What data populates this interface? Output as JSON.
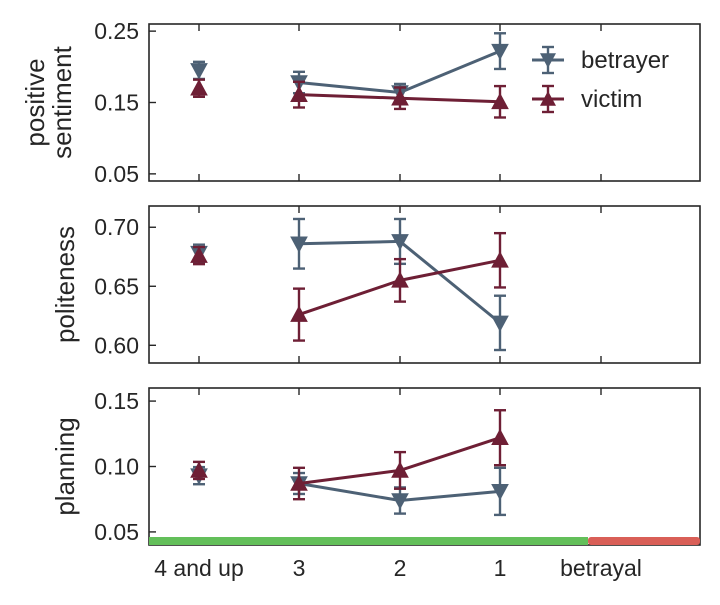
{
  "chart_data": {
    "type": "line",
    "categories": [
      "4 and up",
      "3",
      "2",
      "1",
      "betrayal"
    ],
    "legend": {
      "position": "top-right",
      "entries": [
        {
          "name": "betrayer",
          "color": "#4d6175",
          "marker": "triangle-down"
        },
        {
          "name": "victim",
          "color": "#6e1f35",
          "marker": "triangle-up"
        }
      ]
    },
    "phase_bar": {
      "pre": "#63bf5a",
      "betrayal": "#d95f57"
    },
    "grid": false,
    "panels": [
      {
        "ylabel": [
          "positive",
          "sentiment"
        ],
        "ylim": [
          0.04,
          0.26
        ],
        "yticks": [
          "0.05",
          "0.15",
          "0.25"
        ],
        "ytick_values": [
          0.05,
          0.15,
          0.25
        ],
        "series": [
          {
            "name": "betrayer",
            "values": [
              0.195,
              0.178,
              0.164,
              0.222
            ],
            "err": [
              0.0,
              0.015,
              0.012,
              0.025
            ]
          },
          {
            "name": "victim",
            "values": [
              0.17,
              0.161,
              0.156,
              0.151
            ],
            "err": [
              0.0,
              0.018,
              0.015,
              0.022
            ]
          }
        ]
      },
      {
        "ylabel": [
          "politeness"
        ],
        "ylim": [
          0.585,
          0.718
        ],
        "yticks": [
          "0.60",
          "0.65",
          "0.70"
        ],
        "ytick_values": [
          0.6,
          0.65,
          0.7
        ],
        "series": [
          {
            "name": "betrayer",
            "values": [
              0.678,
              0.686,
              0.688,
              0.619
            ],
            "err": [
              0.0,
              0.021,
              0.019,
              0.023
            ]
          },
          {
            "name": "victim",
            "values": [
              0.676,
              0.626,
              0.655,
              0.672
            ],
            "err": [
              0.0,
              0.022,
              0.018,
              0.023
            ]
          }
        ]
      },
      {
        "ylabel": [
          "planning"
        ],
        "ylim": [
          0.04,
          0.16
        ],
        "yticks": [
          "0.05",
          "0.10",
          "0.15"
        ],
        "ytick_values": [
          0.05,
          0.1,
          0.15
        ],
        "series": [
          {
            "name": "betrayer",
            "values": [
              0.093,
              0.087,
              0.074,
              0.081
            ],
            "err": [
              0.0,
              0.008,
              0.01,
              0.018
            ]
          },
          {
            "name": "victim",
            "values": [
              0.097,
              0.087,
              0.097,
              0.122
            ],
            "err": [
              0.0,
              0.012,
              0.014,
              0.021
            ]
          }
        ]
      }
    ]
  }
}
